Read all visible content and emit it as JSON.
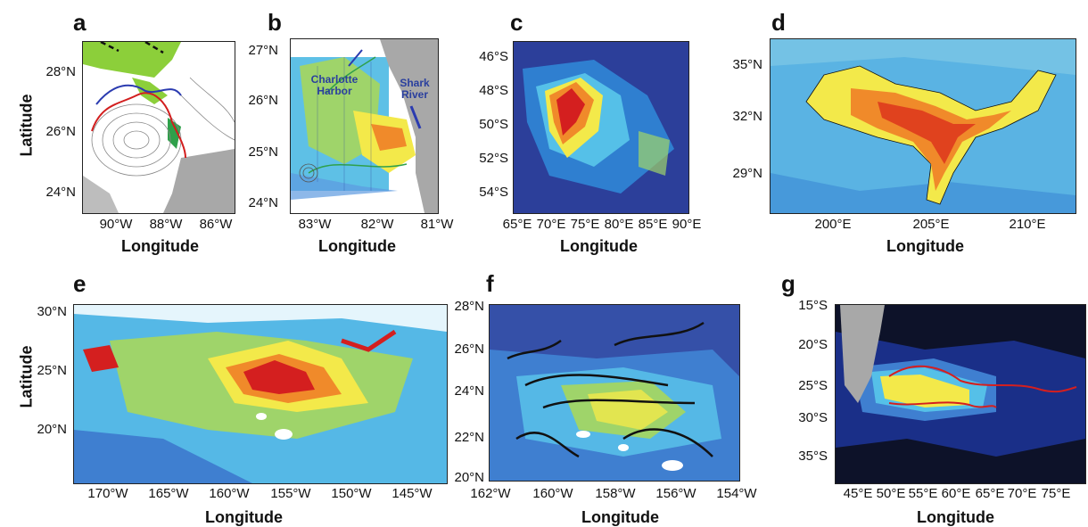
{
  "panels": {
    "a": {
      "letter": "a",
      "yticks": [
        "28°N",
        "26°N",
        "24°N"
      ],
      "xticks": [
        "90°W",
        "88°W",
        "86°W"
      ],
      "xlabel": "Longitude",
      "ylabel": "Latitude"
    },
    "b": {
      "letter": "b",
      "yticks": [
        "27°N",
        "26°N",
        "25°N",
        "24°N"
      ],
      "xticks": [
        "83°W",
        "82°W",
        "81°W"
      ],
      "xlabel": "Longitude",
      "annotations": {
        "charlotte": "Charlotte\nHarbor",
        "shark": "Shark\nRiver"
      }
    },
    "c": {
      "letter": "c",
      "yticks": [
        "46°S",
        "48°S",
        "50°S",
        "52°S",
        "54°S"
      ],
      "xticks": [
        "65°E",
        "70°E",
        "75°E",
        "80°E",
        "85°E",
        "90°E"
      ],
      "xlabel": "Longitude"
    },
    "d": {
      "letter": "d",
      "yticks": [
        "35°N",
        "32°N",
        "29°N"
      ],
      "xticks": [
        "200°E",
        "205°E",
        "210°E"
      ],
      "xlabel": "Longitude"
    },
    "e": {
      "letter": "e",
      "yticks": [
        "30°N",
        "25°N",
        "20°N"
      ],
      "xticks": [
        "170°W",
        "165°W",
        "160°W",
        "155°W",
        "150°W",
        "145°W"
      ],
      "xlabel": "Longitude",
      "ylabel": "Latitude"
    },
    "f": {
      "letter": "f",
      "yticks": [
        "28°N",
        "26°N",
        "24°N",
        "22°N",
        "20°N"
      ],
      "xticks": [
        "162°W",
        "160°W",
        "158°W",
        "156°W",
        "154°W"
      ],
      "xlabel": "Longitude"
    },
    "g": {
      "letter": "g",
      "yticks": [
        "15°S",
        "20°S",
        "25°S",
        "30°S",
        "35°S"
      ],
      "xticks": [
        "45°E",
        "50°E",
        "55°E",
        "60°E",
        "65°E",
        "70°E",
        "75°E"
      ],
      "xlabel": "Longitude"
    }
  },
  "colors": {
    "deep_blue": "#2c3f9a",
    "mid_blue": "#2f7fd0",
    "cyan": "#55c0e8",
    "green": "#9fd46a",
    "yellow": "#f3e94a",
    "orange": "#f08a2a",
    "red": "#d41f1f",
    "land": "#a8a8a8"
  }
}
